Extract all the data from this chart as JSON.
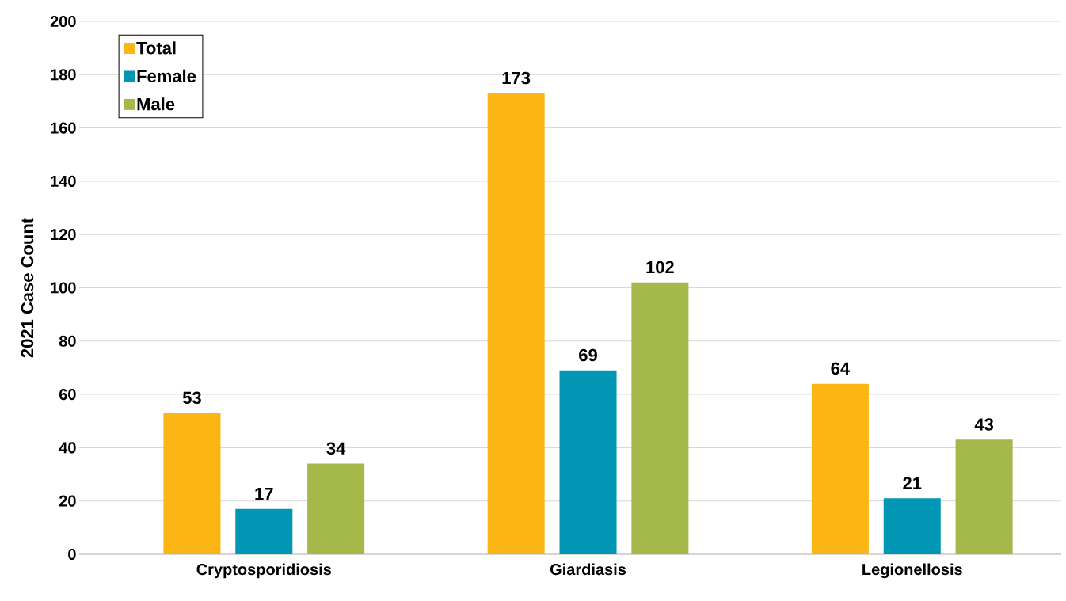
{
  "chart_data": {
    "type": "bar",
    "ylabel": "2021 Case Count",
    "categories": [
      "Cryptosporidiosis",
      "Giardiasis",
      "Legionellosis"
    ],
    "series": [
      {
        "name": "Total",
        "color": "#fbb615",
        "values": [
          53,
          173,
          64
        ]
      },
      {
        "name": "Female",
        "color": "#0096b4",
        "values": [
          17,
          69,
          21
        ]
      },
      {
        "name": "Male",
        "color": "#a4b94a",
        "values": [
          34,
          102,
          43
        ]
      }
    ],
    "ylim": [
      0,
      200
    ],
    "yticks": [
      0,
      20,
      40,
      60,
      80,
      100,
      120,
      140,
      160,
      180,
      200
    ],
    "grid": "y",
    "legend": "top left",
    "data_labels": true
  }
}
